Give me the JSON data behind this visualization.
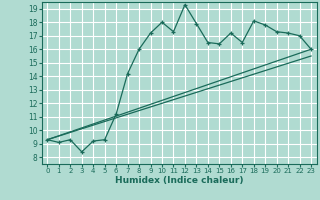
{
  "xlabel": "Humidex (Indice chaleur)",
  "xlim": [
    -0.5,
    23.5
  ],
  "ylim": [
    7.5,
    19.5
  ],
  "xticks": [
    0,
    1,
    2,
    3,
    4,
    5,
    6,
    7,
    8,
    9,
    10,
    11,
    12,
    13,
    14,
    15,
    16,
    17,
    18,
    19,
    20,
    21,
    22,
    23
  ],
  "yticks": [
    8,
    9,
    10,
    11,
    12,
    13,
    14,
    15,
    16,
    17,
    18,
    19
  ],
  "bg_color": "#b0dbd1",
  "grid_color": "#ffffff",
  "line_color": "#1a6b5a",
  "line1_x": [
    0,
    1,
    2,
    3,
    4,
    5,
    6,
    7,
    8,
    9,
    10,
    11,
    12,
    13,
    14,
    15,
    16,
    17,
    18,
    19,
    20,
    21,
    22,
    23
  ],
  "line1_y": [
    9.3,
    9.1,
    9.3,
    8.4,
    9.2,
    9.3,
    11.2,
    14.2,
    16.0,
    17.2,
    18.0,
    17.3,
    19.3,
    17.9,
    16.5,
    16.4,
    17.2,
    16.5,
    18.1,
    17.8,
    17.3,
    17.2,
    17.0,
    16.0
  ],
  "line2_x": [
    0,
    23
  ],
  "line2_y": [
    9.3,
    16.0
  ],
  "line3_x": [
    0,
    23
  ],
  "line3_y": [
    9.3,
    15.5
  ]
}
